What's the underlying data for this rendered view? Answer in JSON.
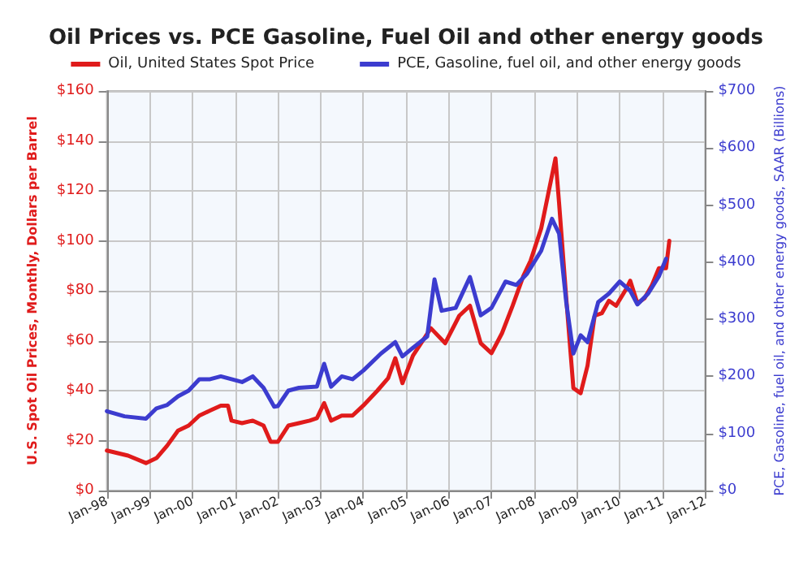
{
  "chart_data": {
    "type": "line",
    "title": "Oil Prices vs. PCE Gasoline, Fuel Oil and other energy goods",
    "ylabel": "U.S. Spot Oil Prices, Monthly, Dollars per Barrel",
    "y2label": "PCE, Gasoline, fuel oil, and other energy goods, SAAR (Billions)",
    "xlim": [
      "1998-01",
      "2012-01"
    ],
    "xticks": [
      {
        "value": "1998-01",
        "label": "Jan-98"
      },
      {
        "value": "1999-01",
        "label": "Jan-99"
      },
      {
        "value": "2000-01",
        "label": "Jan-00"
      },
      {
        "value": "2001-01",
        "label": "Jan-01"
      },
      {
        "value": "2002-01",
        "label": "Jan-02"
      },
      {
        "value": "2003-01",
        "label": "Jan-03"
      },
      {
        "value": "2004-01",
        "label": "Jan-04"
      },
      {
        "value": "2005-01",
        "label": "Jan-05"
      },
      {
        "value": "2006-01",
        "label": "Jan-06"
      },
      {
        "value": "2007-01",
        "label": "Jan-07"
      },
      {
        "value": "2008-01",
        "label": "Jan-08"
      },
      {
        "value": "2009-01",
        "label": "Jan-09"
      },
      {
        "value": "2010-01",
        "label": "Jan-10"
      },
      {
        "value": "2011-01",
        "label": "Jan-11"
      },
      {
        "value": "2012-01",
        "label": "Jan-12"
      }
    ],
    "ylim": [
      0,
      160
    ],
    "yticks": [
      {
        "value": 0,
        "label": "$0"
      },
      {
        "value": 20,
        "label": "$20"
      },
      {
        "value": 40,
        "label": "$40"
      },
      {
        "value": 60,
        "label": "$60"
      },
      {
        "value": 80,
        "label": "$80"
      },
      {
        "value": 100,
        "label": "$100"
      },
      {
        "value": 120,
        "label": "$120"
      },
      {
        "value": 140,
        "label": "$140"
      },
      {
        "value": 160,
        "label": "$160"
      }
    ],
    "y2lim": [
      0,
      700
    ],
    "y2ticks": [
      {
        "value": 0,
        "label": "$0"
      },
      {
        "value": 100,
        "label": "$100"
      },
      {
        "value": 200,
        "label": "$200"
      },
      {
        "value": 300,
        "label": "$300"
      },
      {
        "value": 400,
        "label": "$400"
      },
      {
        "value": 500,
        "label": "$500"
      },
      {
        "value": 600,
        "label": "$600"
      },
      {
        "value": 700,
        "label": "$700"
      }
    ],
    "grid": true,
    "legend": "top",
    "marker": "none",
    "line_style": "solid",
    "series": [
      {
        "name": "Oil, United States Spot Price",
        "color": "#e01b1b",
        "x": [
          "1998-01",
          "1998-07",
          "1998-12",
          "1999-03",
          "1999-06",
          "1999-09",
          "1999-12",
          "2000-03",
          "2000-06",
          "2000-09",
          "2000-11",
          "2000-12",
          "2001-03",
          "2001-06",
          "2001-09",
          "2001-11",
          "2002-01",
          "2002-04",
          "2002-07",
          "2002-10",
          "2002-12",
          "2003-02",
          "2003-04",
          "2003-07",
          "2003-10",
          "2004-01",
          "2004-05",
          "2004-08",
          "2004-10",
          "2004-12",
          "2005-03",
          "2005-08",
          "2005-12",
          "2006-04",
          "2006-07",
          "2006-10",
          "2007-01",
          "2007-04",
          "2007-07",
          "2007-10",
          "2007-12",
          "2008-03",
          "2008-07",
          "2008-08",
          "2008-10",
          "2008-12",
          "2009-02",
          "2009-04",
          "2009-06",
          "2009-08",
          "2009-10",
          "2009-12",
          "2010-03",
          "2010-04",
          "2010-06",
          "2010-08",
          "2010-10",
          "2010-12",
          "2011-01",
          "2011-02",
          "2011-03"
        ],
        "values": [
          16,
          14,
          11,
          13,
          18,
          24,
          26,
          30,
          32,
          34,
          34,
          28,
          27,
          28,
          26,
          19.5,
          19.5,
          26,
          27,
          28,
          29,
          35,
          28,
          30,
          30,
          34,
          40,
          45,
          53,
          43,
          54,
          65,
          59,
          70,
          74,
          59,
          55,
          63,
          74,
          86,
          92,
          105,
          133,
          115,
          77,
          41,
          39,
          50,
          70,
          71,
          76,
          74,
          81,
          84,
          75,
          77,
          82,
          89,
          89,
          89,
          100
        ]
      },
      {
        "name": "PCE, Gasoline, fuel oil, and other energy goods",
        "color": "#3c3ccf",
        "axis": "y2",
        "x": [
          "1998-01",
          "1998-06",
          "1998-12",
          "1999-03",
          "1999-06",
          "1999-09",
          "1999-12",
          "2000-03",
          "2000-06",
          "2000-09",
          "2000-12",
          "2001-03",
          "2001-06",
          "2001-09",
          "2001-12",
          "2002-01",
          "2002-04",
          "2002-07",
          "2002-12",
          "2003-02",
          "2003-04",
          "2003-07",
          "2003-10",
          "2004-01",
          "2004-06",
          "2004-10",
          "2004-12",
          "2005-03",
          "2005-07",
          "2005-09",
          "2005-11",
          "2006-03",
          "2006-07",
          "2006-10",
          "2007-01",
          "2007-05",
          "2007-08",
          "2007-11",
          "2008-03",
          "2008-06",
          "2008-08",
          "2008-10",
          "2008-12",
          "2009-02",
          "2009-04",
          "2009-07",
          "2009-10",
          "2010-01",
          "2010-04",
          "2010-06",
          "2010-09",
          "2010-12",
          "2011-02"
        ],
        "values": [
          139,
          130,
          126,
          144,
          150,
          165,
          175,
          195,
          195,
          200,
          195,
          190,
          200,
          180,
          147,
          148,
          175,
          180,
          182,
          222,
          182,
          200,
          195,
          210,
          240,
          260,
          235,
          250,
          270,
          370,
          315,
          320,
          374,
          307,
          320,
          366,
          360,
          380,
          420,
          476,
          450,
          330,
          240,
          272,
          260,
          330,
          345,
          366,
          350,
          326,
          345,
          375,
          406
        ]
      }
    ]
  }
}
